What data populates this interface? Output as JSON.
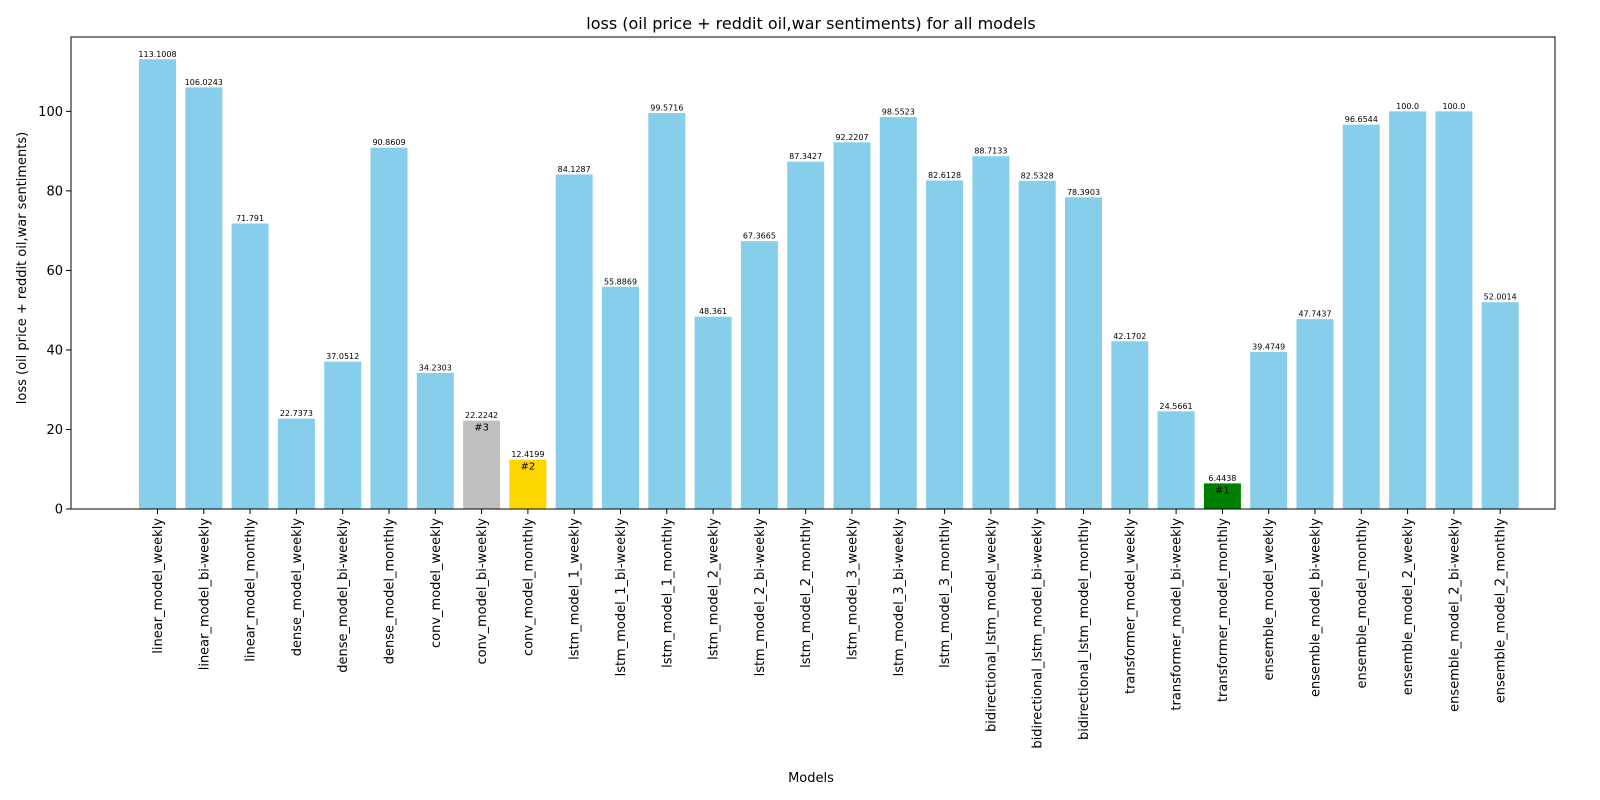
{
  "chart_data": {
    "type": "bar",
    "title": "loss (oil price + reddit oil,war sentiments) for all models",
    "xlabel": "Models",
    "ylabel": "loss (oil price + reddit oil,war sentiments)",
    "ylim": [
      0,
      118.7
    ],
    "yticks": [
      0,
      20,
      40,
      60,
      80,
      100
    ],
    "grid": false,
    "categories": [
      "linear_model_weekly",
      "linear_model_bi-weekly",
      "linear_model_monthly",
      "dense_model_weekly",
      "dense_model_bi-weekly",
      "dense_model_monthly",
      "conv_model_weekly",
      "conv_model_bi-weekly",
      "conv_model_monthly",
      "lstm_model_1_weekly",
      "lstm_model_1_bi-weekly",
      "lstm_model_1_monthly",
      "lstm_model_2_weekly",
      "lstm_model_2_bi-weekly",
      "lstm_model_2_monthly",
      "lstm_model_3_weekly",
      "lstm_model_3_bi-weekly",
      "lstm_model_3_monthly",
      "bidirectional_lstm_model_weekly",
      "bidirectional_lstm_model_bi-weekly",
      "bidirectional_lstm_model_monthly",
      "transformer_model_weekly",
      "transformer_model_bi-weekly",
      "transformer_model_monthly",
      "ensemble_model_weekly",
      "ensemble_model_bi-weekly",
      "ensemble_model_monthly",
      "ensemble_model_2_weekly",
      "ensemble_model_2_bi-weekly",
      "ensemble_model_2_monthly"
    ],
    "values": [
      113.1008,
      106.0243,
      71.791,
      22.7373,
      37.0512,
      90.8609,
      34.2303,
      22.2242,
      12.4199,
      84.1287,
      55.8869,
      99.5716,
      48.361,
      67.3665,
      87.3427,
      92.2207,
      98.5523,
      82.6128,
      88.7133,
      82.5328,
      78.3903,
      42.1702,
      24.5661,
      6.4438,
      39.4749,
      47.7437,
      96.6544,
      100.0,
      100.0,
      52.0014
    ],
    "value_labels": [
      "113.1008",
      "106.0243",
      "71.791",
      "22.7373",
      "37.0512",
      "90.8609",
      "34.2303",
      "22.2242",
      "12.4199",
      "84.1287",
      "55.8869",
      "99.5716",
      "48.361",
      "67.3665",
      "87.3427",
      "92.2207",
      "98.5523",
      "82.6128",
      "88.7133",
      "82.5328",
      "78.3903",
      "42.1702",
      "24.5661",
      "6.4438",
      "39.4749",
      "47.7437",
      "96.6544",
      "100.0",
      "100.0",
      "52.0014"
    ],
    "colors": {
      "default": "#87ceeb",
      "rank1": "#008000",
      "rank2": "#ffd700",
      "rank3": "#c0c0c0"
    },
    "ranks": [
      {
        "index": 23,
        "label": "#1",
        "color_key": "rank1"
      },
      {
        "index": 8,
        "label": "#2",
        "color_key": "rank2"
      },
      {
        "index": 7,
        "label": "#3",
        "color_key": "rank3"
      }
    ]
  }
}
